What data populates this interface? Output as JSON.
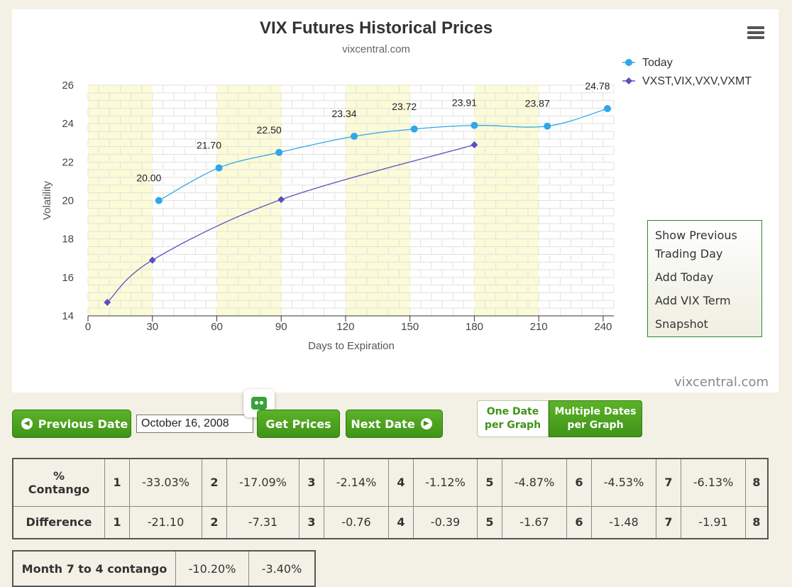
{
  "chart_data": {
    "type": "line",
    "title": "VIX Futures Historical Prices",
    "subtitle": "vixcentral.com",
    "xlabel": "Days to Expiration",
    "ylabel": "Volatility",
    "xlim": [
      0,
      245
    ],
    "ylim": [
      14,
      26
    ],
    "x_ticks": [
      0,
      30,
      60,
      90,
      120,
      150,
      180,
      210,
      240
    ],
    "y_ticks": [
      14,
      16,
      18,
      20,
      22,
      24,
      26
    ],
    "grid": true,
    "legend_position": "top-right",
    "series": [
      {
        "name": "Today",
        "color": "#2fa7e8",
        "marker": "circle",
        "x": [
          33,
          61,
          89,
          124,
          152,
          180,
          214,
          242
        ],
        "y": [
          20.0,
          21.7,
          22.5,
          23.34,
          23.72,
          23.91,
          23.87,
          24.78
        ],
        "labels": [
          "20.00",
          "21.70",
          "22.50",
          "23.34",
          "23.72",
          "23.91",
          "23.87",
          "24.78"
        ]
      },
      {
        "name": "VXST,VIX,VXV,VXMT",
        "color": "#5a4fc0",
        "marker": "diamond",
        "x": [
          9,
          30,
          90,
          180
        ],
        "y": [
          14.7,
          16.9,
          20.05,
          22.9
        ]
      }
    ]
  },
  "credit": "vixcentral.com",
  "menu": {
    "items": [
      "Show Previous Trading Day",
      "Add Today",
      "Add VIX Term",
      "Snapshot"
    ]
  },
  "controls": {
    "prev_label": "Previous Date",
    "date_value": "October 16, 2008",
    "get_prices_label": "Get Prices",
    "next_label": "Next Date",
    "toggle_one_line1": "One Date",
    "toggle_one_line2": "per Graph",
    "toggle_multi_line1": "Multiple Dates",
    "toggle_multi_line2": "per Graph"
  },
  "contango_table": {
    "row1_header_line1": "%",
    "row1_header_line2": "Contango",
    "row2_header": "Difference",
    "indexes": [
      "1",
      "2",
      "3",
      "4",
      "5",
      "6",
      "7",
      "8"
    ],
    "contango": [
      "-33.03%",
      "-17.09%",
      "-2.14%",
      "-1.12%",
      "-4.87%",
      "-4.53%",
      "-6.13%"
    ],
    "difference": [
      "-21.10",
      "-7.31",
      "-0.76",
      "-0.39",
      "-1.67",
      "-1.48",
      "-1.91"
    ]
  },
  "month_table": {
    "label": "Month 7 to 4 contango",
    "v1": "-10.20%",
    "v2": "-3.40%"
  }
}
